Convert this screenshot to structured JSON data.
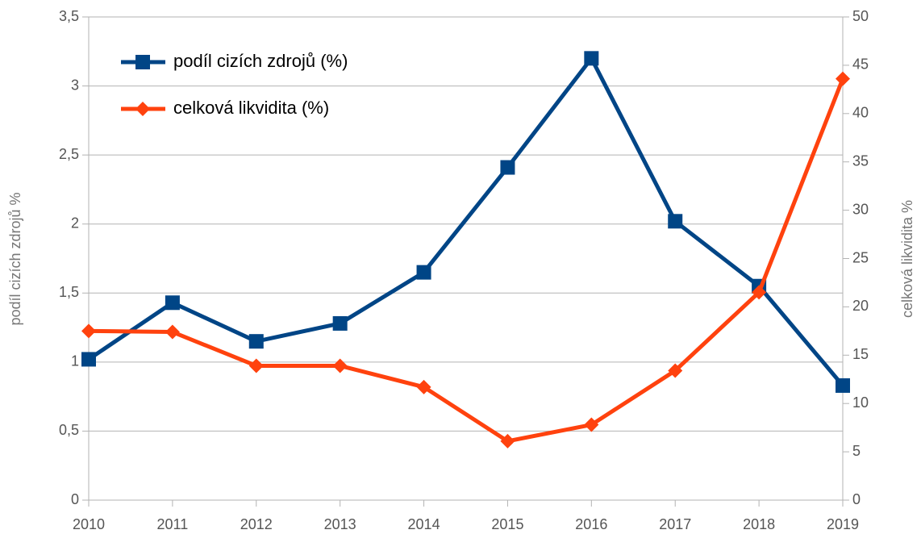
{
  "chart_data": {
    "type": "line",
    "x": [
      2010,
      2011,
      2012,
      2013,
      2014,
      2015,
      2016,
      2017,
      2018,
      2019
    ],
    "xlim": [
      2010,
      2019
    ],
    "xticks": [
      2010,
      2011,
      2012,
      2013,
      2014,
      2015,
      2016,
      2017,
      2018,
      2019
    ],
    "y_label": "podíl cizích zdrojů %",
    "y2_label": "celková likvidita %",
    "ylim": [
      0,
      3.5
    ],
    "yticks": [
      0,
      {
        "value": 0.5,
        "label": "0,5"
      },
      1,
      {
        "value": 1.5,
        "label": "1,5"
      },
      2,
      {
        "value": 2.5,
        "label": "2,5"
      },
      3,
      {
        "value": 3.5,
        "label": "3,5"
      }
    ],
    "y2lim": [
      0,
      50
    ],
    "y2ticks": [
      0,
      5,
      10,
      15,
      20,
      25,
      30,
      35,
      40,
      45,
      50
    ],
    "grid": true,
    "legend": "upper left",
    "series": [
      {
        "name": "podíl cizích zdrojů (%)",
        "color": "#004586",
        "marker": "square",
        "values": [
          1.02,
          1.43,
          1.15,
          1.28,
          1.65,
          2.41,
          3.2,
          2.02,
          1.55,
          0.83
        ]
      },
      {
        "name": "celková likvidita (%)",
        "color": "#ff420e",
        "marker": "diamond",
        "axis": "y2",
        "values": [
          17.5,
          17.4,
          13.9,
          13.9,
          11.7,
          6.1,
          7.8,
          13.4,
          21.5,
          43.6
        ]
      }
    ]
  }
}
